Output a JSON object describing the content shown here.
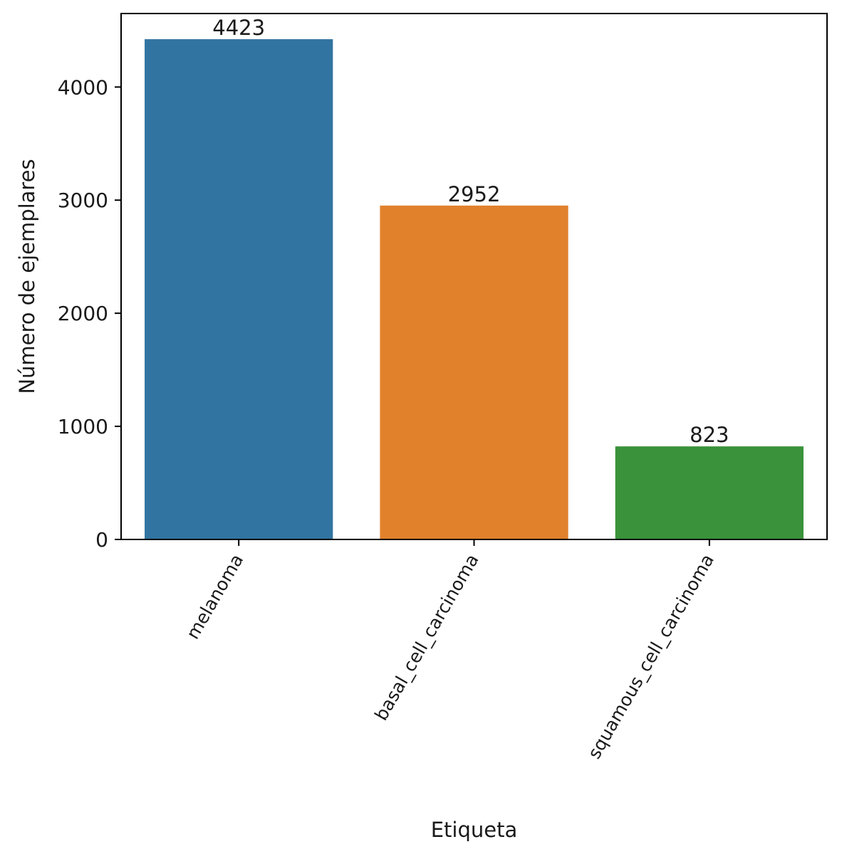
{
  "chart_data": {
    "type": "bar",
    "title": "",
    "xlabel": "Etiqueta",
    "ylabel": "Número de ejemplares",
    "categories": [
      "melanoma",
      "basal_cell_carcinoma",
      "squamous_cell_carcinoma"
    ],
    "values": [
      4423,
      2952,
      823
    ],
    "colors": [
      "#3274a1",
      "#e1812c",
      "#3a923a"
    ],
    "ylim": [
      0,
      4650
    ],
    "yticks": [
      0,
      1000,
      2000,
      3000,
      4000
    ],
    "grid": false,
    "legend": "none",
    "xtick_rotation_deg": 60
  }
}
